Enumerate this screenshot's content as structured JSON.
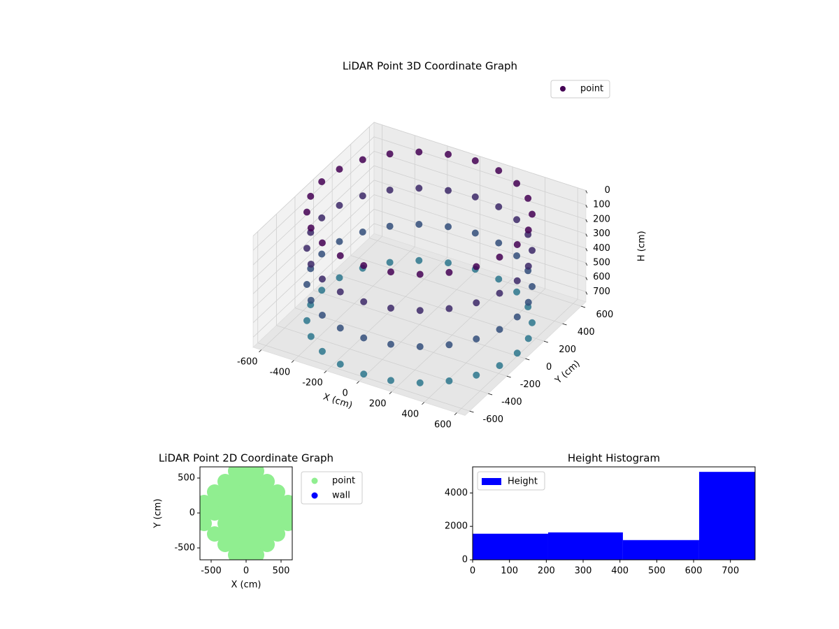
{
  "chart_data": [
    {
      "type": "scatter3d",
      "title": "LiDAR Point 3D Coordinate Graph",
      "xlabel": "X (cm)",
      "ylabel": "Y (cm)",
      "zlabel": "H (cm)",
      "series": [
        {
          "name": "point",
          "color": "#440154",
          "x": [
            600,
            600,
            600,
            600,
            580,
            580,
            580,
            580,
            520,
            520,
            520,
            520,
            424,
            424,
            424,
            424,
            300,
            300,
            300,
            300,
            155,
            155,
            155,
            155,
            0,
            0,
            0,
            0,
            -155,
            -155,
            -155,
            -155,
            -300,
            -300,
            -300,
            -300,
            -424,
            -424,
            -424,
            -424,
            -520,
            -520,
            -520,
            -520,
            -580,
            -580,
            -580,
            -580,
            -600,
            -600,
            -600,
            -600,
            -580,
            -580,
            -580,
            -580,
            -520,
            -520,
            -520,
            -520,
            -424,
            -424,
            -424,
            -424,
            -300,
            -300,
            -300,
            -300,
            -155,
            -155,
            -155,
            -155,
            0,
            0,
            0,
            0,
            155,
            155,
            155,
            155,
            300,
            300,
            300,
            300,
            424,
            424,
            424,
            424,
            520,
            520,
            520,
            520,
            580,
            580,
            580,
            580
          ],
          "y": [
            0,
            0,
            0,
            0,
            155,
            155,
            155,
            155,
            300,
            300,
            300,
            300,
            424,
            424,
            424,
            424,
            520,
            520,
            520,
            520,
            580,
            580,
            580,
            580,
            600,
            600,
            600,
            600,
            580,
            580,
            580,
            580,
            520,
            520,
            520,
            520,
            424,
            424,
            424,
            424,
            300,
            300,
            300,
            300,
            155,
            155,
            155,
            155,
            0,
            0,
            0,
            0,
            -155,
            -155,
            -155,
            -155,
            -300,
            -300,
            -300,
            -300,
            -424,
            -424,
            -424,
            -424,
            -520,
            -520,
            -520,
            -520,
            -580,
            -580,
            -580,
            -580,
            -600,
            -600,
            -600,
            -600,
            -580,
            -580,
            -580,
            -580,
            -520,
            -520,
            -520,
            -520,
            -424,
            -424,
            -424,
            -424,
            -300,
            -300,
            -300,
            -300,
            -155,
            -155,
            -155,
            -155
          ],
          "z": [
            0,
            250,
            500,
            750,
            0,
            250,
            500,
            750,
            0,
            250,
            500,
            750,
            0,
            250,
            500,
            750,
            0,
            250,
            500,
            750,
            0,
            250,
            500,
            750,
            0,
            250,
            500,
            750,
            0,
            250,
            500,
            750,
            0,
            250,
            500,
            750,
            0,
            250,
            500,
            750,
            0,
            250,
            500,
            750,
            0,
            250,
            500,
            750,
            0,
            250,
            500,
            750,
            0,
            250,
            500,
            750,
            0,
            250,
            500,
            750,
            0,
            250,
            500,
            750,
            0,
            250,
            500,
            750,
            0,
            250,
            500,
            750,
            0,
            250,
            500,
            750,
            0,
            250,
            500,
            750,
            0,
            250,
            500,
            750,
            0,
            250,
            500,
            750,
            0,
            250,
            500,
            750,
            0,
            250,
            500,
            750
          ]
        }
      ],
      "color_range": [
        "#440154",
        "#2a788e"
      ],
      "xlim": [
        -650,
        650
      ],
      "ylim": [
        -650,
        650
      ],
      "zlim": [
        0,
        770
      ],
      "z_inverted": true,
      "xticks": [
        -600,
        -400,
        -200,
        0,
        200,
        400,
        600
      ],
      "yticks": [
        -600,
        -400,
        -200,
        0,
        200,
        400,
        600
      ],
      "zticks": [
        0,
        100,
        200,
        300,
        400,
        500,
        600,
        700
      ],
      "grid": true,
      "legend": "upper right"
    },
    {
      "type": "scatter",
      "title": "LiDAR Point 2D Coordinate Graph",
      "xlabel": "X (cm)",
      "ylabel": "Y (cm)",
      "series": [
        {
          "name": "point",
          "color": "#90ee90",
          "x": [
            -150,
            0,
            150,
            -300,
            -150,
            0,
            150,
            300,
            -450,
            -300,
            -150,
            0,
            150,
            300,
            450,
            -600,
            -450,
            -300,
            -150,
            0,
            150,
            300,
            450,
            600,
            -600,
            -450,
            -300,
            -150,
            0,
            150,
            300,
            450,
            600,
            -600,
            -300,
            -150,
            0,
            150,
            300,
            450,
            600,
            -450,
            -300,
            -150,
            0,
            150,
            300,
            450,
            -300,
            -150,
            0,
            150,
            300,
            -150,
            0,
            150
          ],
          "y": [
            600,
            600,
            600,
            450,
            450,
            450,
            450,
            450,
            300,
            300,
            300,
            300,
            300,
            300,
            300,
            150,
            150,
            150,
            150,
            150,
            150,
            150,
            150,
            150,
            0,
            0,
            0,
            0,
            0,
            0,
            0,
            0,
            0,
            -150,
            -150,
            -150,
            -150,
            -150,
            -150,
            -150,
            -150,
            -300,
            -300,
            -300,
            -300,
            -300,
            -300,
            -300,
            -450,
            -450,
            -450,
            -450,
            -450,
            -600,
            -600,
            -600
          ]
        },
        {
          "name": "wall",
          "color": "#0000ff",
          "x": [],
          "y": []
        }
      ],
      "xlim": [
        -660,
        660
      ],
      "ylim": [
        -670,
        660
      ],
      "xticks": [
        -500,
        0,
        500
      ],
      "yticks": [
        -500,
        0,
        500
      ],
      "legend": "outside right"
    },
    {
      "type": "histogram",
      "title": "Height Histogram",
      "bins": [
        0,
        205,
        408,
        615,
        767
      ],
      "series": [
        {
          "name": "Height",
          "color": "#0000ff",
          "values": [
            1560,
            1640,
            1180,
            5260
          ]
        }
      ],
      "xlim": [
        0,
        767
      ],
      "ylim": [
        0,
        5560
      ],
      "xticks": [
        0,
        100,
        200,
        300,
        400,
        500,
        600,
        700
      ],
      "yticks": [
        0,
        2000,
        4000
      ],
      "legend": "upper left"
    }
  ]
}
